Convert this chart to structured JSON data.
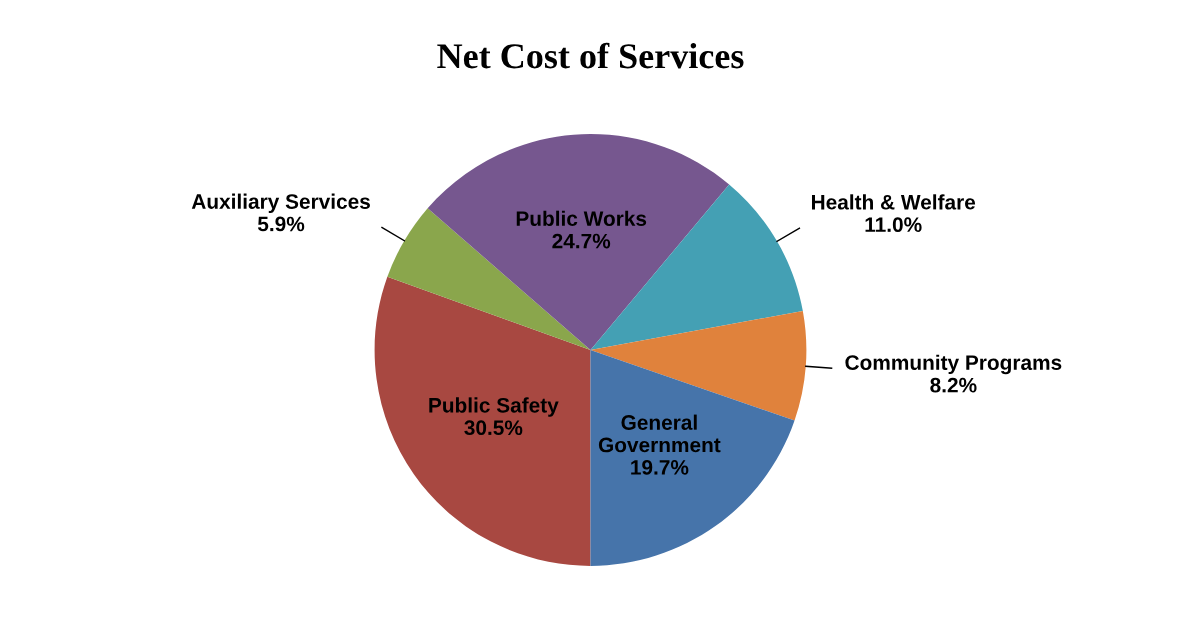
{
  "chart_data": {
    "type": "pie",
    "title": "Net Cost of Services",
    "categories": [
      "Public Safety",
      "Auxiliary Services",
      "Public Works",
      "Health & Welfare",
      "Community Programs",
      "General Government"
    ],
    "values": [
      30.5,
      5.9,
      24.7,
      11.0,
      8.2,
      19.7
    ],
    "colors": [
      "#a84841",
      "#8aa64c",
      "#76578f",
      "#44a0b4",
      "#e0823c",
      "#4674aa"
    ],
    "value_labels": [
      "30.5%",
      "5.9%",
      "24.7%",
      "11.0%",
      "8.2%",
      "19.7%"
    ],
    "legend": false
  }
}
